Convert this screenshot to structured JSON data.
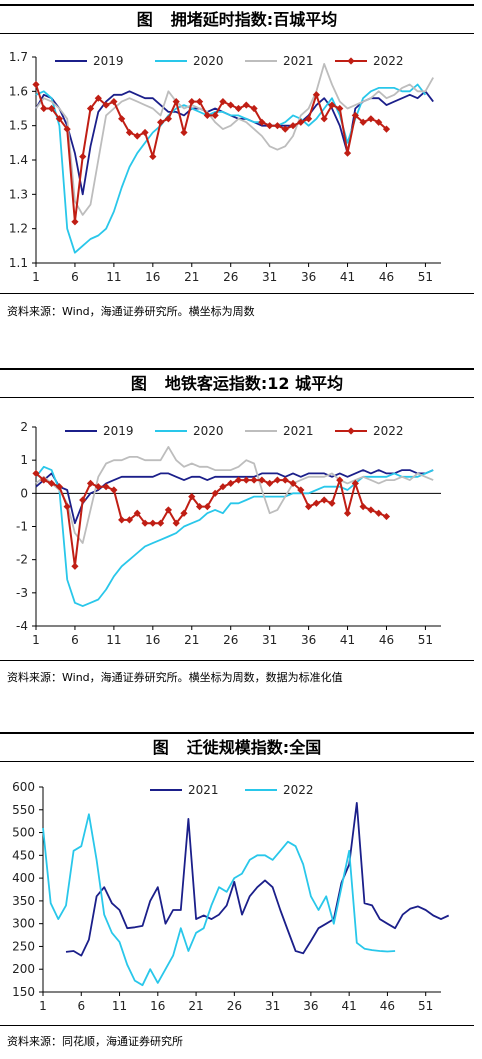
{
  "panels": [
    {
      "title_prefix": "图",
      "title": "拥堵延时指数:百城平均",
      "source": "资料来源：Wind，海通证券研究所。横坐标为周数",
      "chart_data": {
        "type": "line",
        "xlim": [
          1,
          53
        ],
        "x_ticks": [
          1,
          6,
          11,
          16,
          21,
          26,
          31,
          36,
          41,
          46,
          51
        ],
        "ylim": [
          1.1,
          1.7
        ],
        "y_ticks": [
          1.1,
          1.2,
          1.3,
          1.4,
          1.5,
          1.6,
          1.7
        ],
        "y_tick_labels": [
          "1.1",
          "1.2",
          "1.3",
          "1.4",
          "1.5",
          "1.6",
          "1.7"
        ],
        "legend_position": "top",
        "series": [
          {
            "name": "2019",
            "color": "#1b1f8a",
            "values": [
              1.55,
              1.59,
              1.58,
              1.55,
              1.5,
              1.42,
              1.3,
              1.44,
              1.54,
              1.57,
              1.59,
              1.59,
              1.6,
              1.59,
              1.58,
              1.58,
              1.56,
              1.54,
              1.54,
              1.53,
              1.55,
              1.55,
              1.54,
              1.55,
              1.54,
              1.53,
              1.52,
              1.52,
              1.51,
              1.5,
              1.5,
              1.5,
              1.5,
              1.5,
              1.51,
              1.53,
              1.56,
              1.58,
              1.55,
              1.5,
              1.42,
              1.55,
              1.57,
              1.58,
              1.58,
              1.56,
              1.57,
              1.58,
              1.59,
              1.58,
              1.6,
              1.57
            ]
          },
          {
            "name": "2020",
            "color": "#29c7ea",
            "values": [
              1.59,
              1.6,
              1.58,
              1.5,
              1.2,
              1.13,
              1.15,
              1.17,
              1.18,
              1.2,
              1.25,
              1.32,
              1.38,
              1.42,
              1.45,
              1.48,
              1.5,
              1.53,
              1.55,
              1.56,
              1.55,
              1.54,
              1.53,
              1.54,
              1.54,
              1.53,
              1.53,
              1.52,
              1.51,
              1.51,
              1.5,
              1.5,
              1.51,
              1.53,
              1.52,
              1.5,
              1.52,
              1.55,
              1.58,
              1.53,
              1.45,
              1.52,
              1.58,
              1.6,
              1.61,
              1.61,
              1.61,
              1.6,
              1.6,
              1.62,
              1.59
            ]
          },
          {
            "name": "2021",
            "color": "#bdbdbd",
            "values": [
              1.55,
              1.58,
              1.57,
              1.55,
              1.52,
              1.28,
              1.24,
              1.27,
              1.4,
              1.53,
              1.55,
              1.57,
              1.58,
              1.57,
              1.56,
              1.55,
              1.53,
              1.6,
              1.57,
              1.55,
              1.56,
              1.55,
              1.54,
              1.51,
              1.49,
              1.5,
              1.52,
              1.51,
              1.49,
              1.47,
              1.44,
              1.43,
              1.44,
              1.47,
              1.53,
              1.55,
              1.6,
              1.68,
              1.62,
              1.57,
              1.55,
              1.56,
              1.57,
              1.58,
              1.6,
              1.58,
              1.59,
              1.61,
              1.62,
              1.6,
              1.6,
              1.64
            ]
          },
          {
            "name": "2022",
            "color": "#c01e14",
            "values": [
              1.62,
              1.55,
              1.55,
              1.52,
              1.49,
              1.22,
              1.41,
              1.55,
              1.58,
              1.56,
              1.57,
              1.52,
              1.48,
              1.47,
              1.48,
              1.41,
              1.51,
              1.52,
              1.57,
              1.48,
              1.57,
              1.57,
              1.53,
              1.53,
              1.57,
              1.56,
              1.55,
              1.56,
              1.55,
              1.51,
              1.5,
              1.5,
              1.49,
              1.5,
              1.51,
              1.52,
              1.59,
              1.52,
              1.56,
              1.55,
              1.42,
              1.53,
              1.51,
              1.52,
              1.51,
              1.49
            ]
          }
        ]
      }
    },
    {
      "title_prefix": "图",
      "title": "地铁客运指数:12 城平均",
      "source": "资料来源：Wind，海通证券研究所。横坐标为周数，数据为标准化值",
      "chart_data": {
        "type": "line",
        "xlim": [
          1,
          53
        ],
        "x_ticks": [
          1,
          6,
          11,
          16,
          21,
          26,
          31,
          36,
          41,
          46,
          51
        ],
        "ylim": [
          -4,
          2
        ],
        "y_ticks": [
          -4,
          -3,
          -2,
          -1,
          0,
          1,
          2
        ],
        "y_tick_labels": [
          "-4",
          "-3",
          "-2",
          "-1",
          "0",
          "1",
          "2"
        ],
        "legend_position": "top",
        "series": [
          {
            "name": "2019",
            "color": "#1b1f8a",
            "values": [
              0.2,
              0.4,
              0.6,
              0.2,
              0.1,
              -0.9,
              -0.3,
              0.0,
              0.1,
              0.3,
              0.4,
              0.5,
              0.5,
              0.5,
              0.5,
              0.5,
              0.6,
              0.6,
              0.5,
              0.4,
              0.5,
              0.5,
              0.4,
              0.5,
              0.5,
              0.5,
              0.5,
              0.5,
              0.5,
              0.6,
              0.6,
              0.6,
              0.5,
              0.6,
              0.5,
              0.6,
              0.6,
              0.6,
              0.5,
              0.6,
              0.5,
              0.6,
              0.7,
              0.6,
              0.7,
              0.6,
              0.6,
              0.7,
              0.7,
              0.6,
              0.6,
              0.7
            ]
          },
          {
            "name": "2020",
            "color": "#29c7ea",
            "values": [
              0.5,
              0.8,
              0.7,
              0.1,
              -2.6,
              -3.3,
              -3.4,
              -3.3,
              -3.2,
              -2.9,
              -2.5,
              -2.2,
              -2.0,
              -1.8,
              -1.6,
              -1.5,
              -1.4,
              -1.3,
              -1.2,
              -1.0,
              -0.9,
              -0.8,
              -0.6,
              -0.5,
              -0.6,
              -0.3,
              -0.3,
              -0.2,
              -0.1,
              -0.1,
              -0.1,
              -0.1,
              -0.1,
              0.0,
              0.0,
              0.0,
              0.1,
              0.2,
              0.2,
              0.2,
              0.1,
              0.3,
              0.5,
              0.5,
              0.5,
              0.5,
              0.6,
              0.5,
              0.5,
              0.5,
              0.6,
              0.7
            ]
          },
          {
            "name": "2021",
            "color": "#bdbdbd",
            "values": [
              0.3,
              0.5,
              0.3,
              0.1,
              -0.3,
              -1.2,
              -1.5,
              -0.5,
              0.5,
              0.9,
              1.0,
              1.0,
              1.1,
              1.1,
              1.0,
              1.0,
              1.0,
              1.4,
              1.0,
              0.8,
              0.9,
              0.8,
              0.8,
              0.7,
              0.7,
              0.7,
              0.8,
              1.0,
              0.9,
              0.1,
              -0.6,
              -0.5,
              -0.1,
              0.3,
              0.4,
              0.5,
              0.5,
              0.5,
              0.6,
              0.4,
              0.3,
              0.4,
              0.5,
              0.4,
              0.3,
              0.4,
              0.4,
              0.5,
              0.4,
              0.6,
              0.5,
              0.4
            ]
          },
          {
            "name": "2022",
            "color": "#c01e14",
            "values": [
              0.6,
              0.4,
              0.3,
              0.2,
              -0.4,
              -2.2,
              -0.2,
              0.3,
              0.2,
              0.2,
              0.1,
              -0.8,
              -0.8,
              -0.6,
              -0.9,
              -0.9,
              -0.9,
              -0.5,
              -0.9,
              -0.6,
              -0.1,
              -0.4,
              -0.4,
              0.0,
              0.2,
              0.3,
              0.4,
              0.4,
              0.4,
              0.4,
              0.3,
              0.4,
              0.4,
              0.3,
              0.1,
              -0.4,
              -0.3,
              -0.2,
              -0.3,
              0.4,
              -0.6,
              0.3,
              -0.4,
              -0.5,
              -0.6,
              -0.7
            ]
          }
        ]
      }
    },
    {
      "title_prefix": "图",
      "title": "迁徙规模指数:全国",
      "source": "资料来源：同花顺，海通证券研究所",
      "chart_data": {
        "type": "line",
        "xlim": [
          1,
          53
        ],
        "x_ticks": [
          1,
          6,
          11,
          16,
          21,
          26,
          31,
          36,
          41,
          46,
          51
        ],
        "ylim": [
          150,
          600
        ],
        "y_ticks": [
          150,
          200,
          250,
          300,
          350,
          400,
          450,
          500,
          550,
          600
        ],
        "y_tick_labels": [
          "150",
          "200",
          "250",
          "300",
          "350",
          "400",
          "450",
          "500",
          "550",
          "600"
        ],
        "legend_position": "top",
        "series": [
          {
            "name": "2021",
            "color": "#1b1f8a",
            "x_start": 4,
            "values": [
              238,
              240,
              230,
              265,
              360,
              380,
              345,
              330,
              290,
              292,
              295,
              350,
              380,
              300,
              330,
              330,
              530,
              310,
              318,
              310,
              320,
              340,
              392,
              320,
              360,
              380,
              395,
              380,
              330,
              285,
              240,
              235,
              262,
              290,
              300,
              310,
              390,
              430,
              565,
              345,
              340,
              310,
              300,
              290,
              320,
              333,
              338,
              330,
              318,
              310,
              318
            ]
          },
          {
            "name": "2022",
            "color": "#29c7ea",
            "x_start": 1,
            "values": [
              510,
              345,
              310,
              340,
              460,
              470,
              540,
              440,
              320,
              280,
              260,
              210,
              175,
              165,
              200,
              170,
              200,
              230,
              290,
              240,
              280,
              290,
              340,
              380,
              370,
              400,
              410,
              440,
              450,
              450,
              440,
              460,
              480,
              470,
              430,
              360,
              330,
              360,
              300,
              380,
              460,
              258,
              245,
              242,
              240,
              239,
              240
            ]
          }
        ]
      }
    }
  ]
}
